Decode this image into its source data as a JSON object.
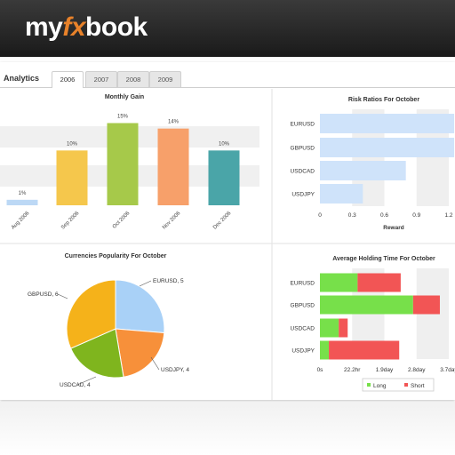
{
  "logo": {
    "part1": "my",
    "part2": "fx",
    "part3": "book"
  },
  "tabs": {
    "title": "Analytics",
    "items": [
      {
        "label": "2006",
        "active": true
      },
      {
        "label": "2007",
        "active": false
      },
      {
        "label": "2008",
        "active": false
      },
      {
        "label": "2009",
        "active": false
      }
    ]
  },
  "colors": {
    "long": "#77e04a",
    "short": "#f25555",
    "risk_bar": "#cfe3fa",
    "accent": "#e8822a"
  },
  "chart_data": [
    {
      "type": "bar",
      "title": "Monthly Gain",
      "categories": [
        "Aug 2006",
        "Sep 2006",
        "Oct 2006",
        "Nov 2006",
        "Dec 2006"
      ],
      "values": [
        1,
        10,
        15,
        14,
        10
      ],
      "data_labels": [
        "1%",
        "10%",
        "15%",
        "14%",
        "10%"
      ],
      "colors": [
        "#bcd8f5",
        "#f5c74c",
        "#a6c94a",
        "#f7a06a",
        "#4aa5a8"
      ],
      "ylim": [
        0,
        18
      ]
    },
    {
      "type": "bar",
      "orientation": "horizontal",
      "title": "Risk Ratios For October",
      "xlabel": "Reward",
      "categories": [
        "EURUSD",
        "GBPUSD",
        "USDCAD",
        "USDJPY"
      ],
      "values": [
        1.25,
        1.25,
        0.8,
        0.4
      ],
      "x_ticks": [
        "0",
        "0.3",
        "0.6",
        "0.9",
        "1.2"
      ],
      "xlim": [
        0,
        1.2
      ]
    },
    {
      "type": "pie",
      "title": "Currencies Popularity For October",
      "slices": [
        {
          "label": "EURUSD, 5",
          "value": 5,
          "color": "#a9d1f7"
        },
        {
          "label": "USDJPY, 4",
          "value": 4,
          "color": "#f7903a"
        },
        {
          "label": "USDCAD, 4",
          "value": 4,
          "color": "#7fb51e"
        },
        {
          "label": "GBPUSD, 6",
          "value": 6,
          "color": "#f5b21a"
        }
      ]
    },
    {
      "type": "bar",
      "orientation": "horizontal",
      "stacked": true,
      "title": "Average Holding Time For October",
      "categories": [
        "EURUSD",
        "GBPUSD",
        "USDCAD",
        "USDJPY"
      ],
      "series": [
        {
          "name": "Long",
          "values": [
            0.76,
            1.88,
            0.38,
            0.18
          ]
        },
        {
          "name": "Short",
          "values": [
            0.87,
            0.54,
            0.18,
            1.42
          ]
        }
      ],
      "x_ticks": [
        "0s",
        "22.2hr",
        "1.9day",
        "2.8day",
        "3.7day"
      ],
      "xlim": [
        0,
        2.6
      ]
    }
  ]
}
